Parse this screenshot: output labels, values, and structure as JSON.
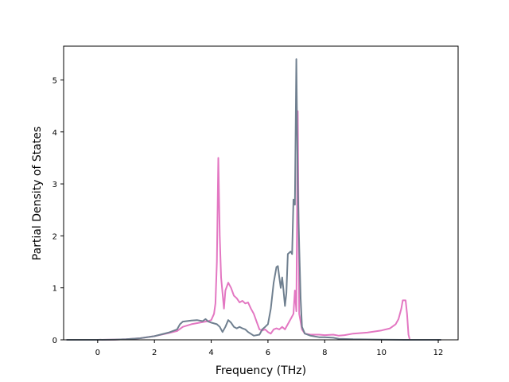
{
  "chart_data": {
    "type": "line",
    "title": "",
    "xlabel": "Frequency (THz)",
    "ylabel": "Partial Density of States",
    "xlim": [
      -1.2,
      12.7
    ],
    "ylim": [
      0,
      5.65
    ],
    "xticks": [
      0,
      2,
      4,
      6,
      8,
      10,
      12
    ],
    "yticks": [
      0,
      1,
      2,
      3,
      4,
      5
    ],
    "grid": false,
    "legend": "none",
    "series": [
      {
        "color": "#e377c2",
        "points": [
          [
            -1.1,
            0
          ],
          [
            0.0,
            0.0
          ],
          [
            0.6,
            0.005
          ],
          [
            1.0,
            0.01
          ],
          [
            1.5,
            0.03
          ],
          [
            2.0,
            0.07
          ],
          [
            2.5,
            0.13
          ],
          [
            2.8,
            0.17
          ],
          [
            3.0,
            0.25
          ],
          [
            3.3,
            0.3
          ],
          [
            3.6,
            0.33
          ],
          [
            3.9,
            0.36
          ],
          [
            4.0,
            0.38
          ],
          [
            4.1,
            0.5
          ],
          [
            4.15,
            0.7
          ],
          [
            4.2,
            1.5
          ],
          [
            4.25,
            3.5
          ],
          [
            4.3,
            2.0
          ],
          [
            4.35,
            1.2
          ],
          [
            4.4,
            0.9
          ],
          [
            4.45,
            0.6
          ],
          [
            4.5,
            0.95
          ],
          [
            4.6,
            1.1
          ],
          [
            4.7,
            1.0
          ],
          [
            4.8,
            0.85
          ],
          [
            4.9,
            0.8
          ],
          [
            5.0,
            0.72
          ],
          [
            5.1,
            0.75
          ],
          [
            5.2,
            0.7
          ],
          [
            5.3,
            0.72
          ],
          [
            5.4,
            0.6
          ],
          [
            5.5,
            0.5
          ],
          [
            5.6,
            0.35
          ],
          [
            5.7,
            0.2
          ],
          [
            5.8,
            0.18
          ],
          [
            5.9,
            0.2
          ],
          [
            6.0,
            0.15
          ],
          [
            6.1,
            0.12
          ],
          [
            6.2,
            0.2
          ],
          [
            6.3,
            0.22
          ],
          [
            6.4,
            0.2
          ],
          [
            6.5,
            0.25
          ],
          [
            6.6,
            0.2
          ],
          [
            6.7,
            0.3
          ],
          [
            6.8,
            0.4
          ],
          [
            6.9,
            0.5
          ],
          [
            6.95,
            0.95
          ],
          [
            7.0,
            0.55
          ],
          [
            7.05,
            4.4
          ],
          [
            7.1,
            0.5
          ],
          [
            7.2,
            0.2
          ],
          [
            7.3,
            0.12
          ],
          [
            7.5,
            0.1
          ],
          [
            7.8,
            0.1
          ],
          [
            8.0,
            0.09
          ],
          [
            8.3,
            0.1
          ],
          [
            8.5,
            0.08
          ],
          [
            8.7,
            0.09
          ],
          [
            9.0,
            0.12
          ],
          [
            9.5,
            0.14
          ],
          [
            10.0,
            0.18
          ],
          [
            10.3,
            0.22
          ],
          [
            10.5,
            0.3
          ],
          [
            10.6,
            0.4
          ],
          [
            10.7,
            0.6
          ],
          [
            10.75,
            0.76
          ],
          [
            10.85,
            0.76
          ],
          [
            10.9,
            0.5
          ],
          [
            10.95,
            0.1
          ],
          [
            11.0,
            0.0
          ],
          [
            12.1,
            0.0
          ]
        ]
      },
      {
        "color": "#708090",
        "points": [
          [
            -1.1,
            0
          ],
          [
            0.0,
            0.0
          ],
          [
            0.6,
            0.005
          ],
          [
            1.0,
            0.01
          ],
          [
            1.5,
            0.03
          ],
          [
            2.0,
            0.07
          ],
          [
            2.5,
            0.14
          ],
          [
            2.8,
            0.2
          ],
          [
            2.9,
            0.3
          ],
          [
            3.0,
            0.35
          ],
          [
            3.3,
            0.37
          ],
          [
            3.5,
            0.38
          ],
          [
            3.7,
            0.36
          ],
          [
            3.8,
            0.4
          ],
          [
            3.9,
            0.35
          ],
          [
            4.0,
            0.33
          ],
          [
            4.2,
            0.3
          ],
          [
            4.3,
            0.25
          ],
          [
            4.4,
            0.15
          ],
          [
            4.5,
            0.25
          ],
          [
            4.6,
            0.38
          ],
          [
            4.7,
            0.33
          ],
          [
            4.8,
            0.25
          ],
          [
            4.9,
            0.22
          ],
          [
            5.0,
            0.25
          ],
          [
            5.1,
            0.22
          ],
          [
            5.2,
            0.2
          ],
          [
            5.3,
            0.15
          ],
          [
            5.5,
            0.08
          ],
          [
            5.7,
            0.1
          ],
          [
            5.8,
            0.2
          ],
          [
            5.9,
            0.25
          ],
          [
            6.0,
            0.3
          ],
          [
            6.1,
            0.6
          ],
          [
            6.2,
            1.1
          ],
          [
            6.3,
            1.4
          ],
          [
            6.35,
            1.42
          ],
          [
            6.4,
            1.2
          ],
          [
            6.45,
            1.0
          ],
          [
            6.5,
            1.2
          ],
          [
            6.55,
            0.95
          ],
          [
            6.6,
            0.65
          ],
          [
            6.65,
            0.9
          ],
          [
            6.7,
            1.65
          ],
          [
            6.8,
            1.7
          ],
          [
            6.85,
            1.65
          ],
          [
            6.9,
            2.7
          ],
          [
            6.95,
            2.6
          ],
          [
            7.0,
            5.4
          ],
          [
            7.05,
            3.0
          ],
          [
            7.1,
            1.8
          ],
          [
            7.15,
            0.8
          ],
          [
            7.2,
            0.25
          ],
          [
            7.3,
            0.12
          ],
          [
            7.5,
            0.08
          ],
          [
            7.8,
            0.05
          ],
          [
            8.0,
            0.05
          ],
          [
            8.3,
            0.04
          ],
          [
            8.5,
            0.02
          ],
          [
            9.0,
            0.01
          ],
          [
            10.0,
            0.005
          ],
          [
            11.0,
            0.0
          ],
          [
            12.1,
            0.0
          ]
        ]
      }
    ]
  }
}
